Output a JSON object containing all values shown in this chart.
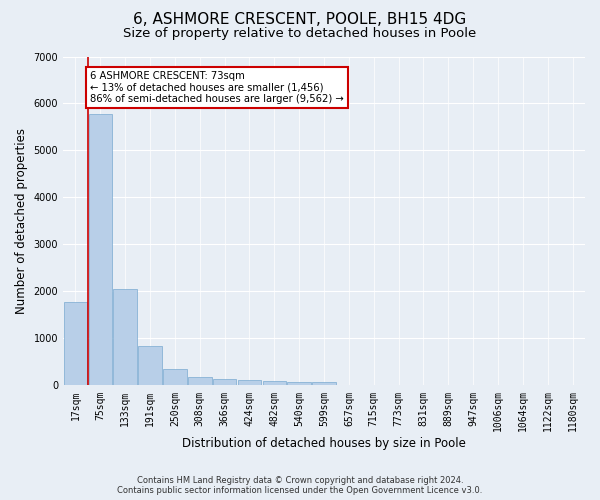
{
  "title": "6, ASHMORE CRESCENT, POOLE, BH15 4DG",
  "subtitle": "Size of property relative to detached houses in Poole",
  "xlabel": "Distribution of detached houses by size in Poole",
  "ylabel": "Number of detached properties",
  "bar_labels": [
    "17sqm",
    "75sqm",
    "133sqm",
    "191sqm",
    "250sqm",
    "308sqm",
    "366sqm",
    "424sqm",
    "482sqm",
    "540sqm",
    "599sqm",
    "657sqm",
    "715sqm",
    "773sqm",
    "831sqm",
    "889sqm",
    "947sqm",
    "1006sqm",
    "1064sqm",
    "1122sqm",
    "1180sqm"
  ],
  "bar_values": [
    1780,
    5780,
    2060,
    830,
    340,
    190,
    130,
    110,
    105,
    75,
    80,
    0,
    0,
    0,
    0,
    0,
    0,
    0,
    0,
    0,
    0
  ],
  "bar_color": "#b8cfe8",
  "bar_edge_color": "#7aaad0",
  "annotation_text": "6 ASHMORE CRESCENT: 73sqm\n← 13% of detached houses are smaller (1,456)\n86% of semi-detached houses are larger (9,562) →",
  "annotation_box_color": "#ffffff",
  "annotation_box_edge_color": "#cc0000",
  "vline_color": "#cc0000",
  "ylim": [
    0,
    7000
  ],
  "yticks": [
    0,
    1000,
    2000,
    3000,
    4000,
    5000,
    6000,
    7000
  ],
  "footer_line1": "Contains HM Land Registry data © Crown copyright and database right 2024.",
  "footer_line2": "Contains public sector information licensed under the Open Government Licence v3.0.",
  "bg_color": "#e8eef5",
  "plot_bg_color": "#e8eef5",
  "grid_color": "#ffffff",
  "title_fontsize": 11,
  "subtitle_fontsize": 9.5,
  "axis_label_fontsize": 8.5,
  "tick_fontsize": 7,
  "footer_fontsize": 6
}
